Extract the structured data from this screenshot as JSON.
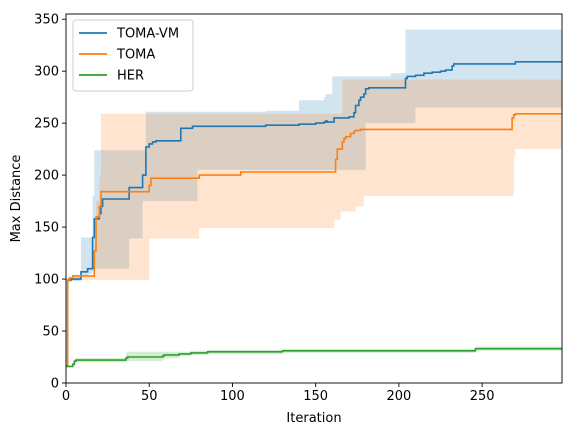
{
  "chart_data": {
    "type": "line",
    "xlabel": "Iteration",
    "ylabel": "Max Distance",
    "xlim": [
      0,
      298
    ],
    "ylim": [
      0,
      355
    ],
    "xticks": [
      0,
      50,
      100,
      150,
      200,
      250
    ],
    "yticks": [
      0,
      50,
      100,
      150,
      200,
      250,
      300,
      350
    ],
    "legend_position": "upper-left",
    "series": [
      {
        "name": "TOMA-VM",
        "color": "#1f77b4",
        "x": [
          0,
          1,
          2,
          3,
          8,
          9,
          12,
          13,
          15,
          16,
          17,
          18,
          20,
          21,
          22,
          23,
          24,
          37,
          38,
          45,
          46,
          47,
          48,
          50,
          52,
          54,
          68,
          69,
          75,
          76,
          78,
          79,
          80,
          81,
          120,
          130,
          140,
          150,
          155,
          156,
          157,
          160,
          161,
          165,
          170,
          173,
          174,
          176,
          177,
          178,
          179,
          180,
          181,
          182,
          185,
          195,
          202,
          204,
          205,
          210,
          215,
          220,
          222,
          225,
          228,
          230,
          232,
          233,
          235,
          240,
          250,
          260,
          270,
          280,
          298
        ],
        "y": [
          17,
          99,
          99,
          100,
          100,
          107,
          107,
          110,
          110,
          140,
          158,
          158,
          163,
          170,
          177,
          177,
          177,
          177,
          188,
          188,
          200,
          200,
          227,
          230,
          232,
          233,
          233,
          245,
          245,
          247,
          247,
          247,
          247,
          247,
          248,
          248,
          249,
          250,
          251,
          252,
          251,
          251,
          255,
          255,
          256,
          260,
          267,
          272,
          275,
          275,
          278,
          283,
          283,
          284,
          284,
          284,
          284,
          293,
          295,
          296,
          298,
          299,
          299,
          300,
          301,
          301,
          305,
          307,
          307,
          307,
          307,
          307,
          309,
          309,
          309
        ],
        "lower": [
          17,
          97,
          97,
          98,
          98,
          103,
          103,
          105,
          105,
          108,
          110,
          110,
          110,
          110,
          110,
          110,
          110,
          110,
          139,
          139,
          175,
          175,
          175,
          175,
          175,
          175,
          175,
          175,
          175,
          175,
          175,
          205,
          205,
          205,
          205,
          205,
          205,
          205,
          205,
          205,
          205,
          205,
          205,
          205,
          205,
          205,
          205,
          205,
          205,
          205,
          205,
          250,
          250,
          250,
          250,
          250,
          250,
          250,
          250,
          265,
          265,
          265,
          265,
          265,
          265,
          265,
          265,
          265,
          265,
          265,
          265,
          265,
          265,
          265,
          265
        ],
        "upper": [
          17,
          101,
          101,
          102,
          102,
          140,
          140,
          140,
          140,
          180,
          224,
          224,
          224,
          224,
          224,
          224,
          224,
          224,
          224,
          224,
          224,
          224,
          261,
          261,
          261,
          261,
          261,
          261,
          261,
          261,
          261,
          261,
          261,
          261,
          262,
          262,
          272,
          272,
          275,
          278,
          278,
          295,
          295,
          295,
          295,
          295,
          295,
          295,
          295,
          295,
          295,
          295,
          295,
          295,
          295,
          298,
          298,
          340,
          340,
          340,
          340,
          340,
          340,
          340,
          340,
          340,
          340,
          340,
          340,
          340,
          340,
          340,
          340,
          340,
          340
        ]
      },
      {
        "name": "TOMA",
        "color": "#ff7f0e",
        "x": [
          0,
          1,
          2,
          4,
          10,
          11,
          14,
          15,
          17,
          18,
          20,
          21,
          22,
          30,
          48,
          49,
          50,
          51,
          72,
          73,
          80,
          104,
          105,
          130,
          161,
          162,
          163,
          164,
          165,
          166,
          167,
          168,
          169,
          170,
          171,
          172,
          173,
          174,
          175,
          176,
          177,
          178,
          179,
          180,
          220,
          240,
          267,
          268,
          269,
          270,
          271,
          298
        ],
        "y": [
          17,
          99,
          101,
          103,
          103,
          103,
          103,
          103,
          127,
          160,
          170,
          184,
          184,
          184,
          184,
          184,
          190,
          197,
          197,
          197,
          200,
          200,
          203,
          203,
          203,
          215,
          225,
          225,
          225,
          232,
          235,
          237,
          237,
          237,
          240,
          240,
          242,
          243,
          243,
          243,
          244,
          244,
          244,
          244,
          244,
          244,
          244,
          255,
          258,
          259,
          259,
          259
        ],
        "lower": [
          17,
          98,
          98,
          99,
          99,
          99,
          99,
          99,
          99,
          99,
          99,
          99,
          99,
          99,
          99,
          99,
          139,
          139,
          139,
          139,
          149,
          149,
          149,
          149,
          157,
          157,
          157,
          157,
          165,
          165,
          165,
          165,
          165,
          165,
          165,
          165,
          165,
          170,
          170,
          170,
          170,
          170,
          180,
          180,
          180,
          180,
          180,
          180,
          218,
          225,
          225,
          225
        ],
        "upper": [
          17,
          100,
          102,
          104,
          104,
          104,
          104,
          104,
          135,
          175,
          200,
          259,
          259,
          259,
          259,
          259,
          259,
          259,
          259,
          259,
          259,
          259,
          259,
          259,
          259,
          259,
          259,
          259,
          259,
          292,
          292,
          292,
          292,
          292,
          292,
          292,
          292,
          292,
          292,
          292,
          292,
          292,
          292,
          292,
          292,
          292,
          292,
          292,
          292,
          292,
          292,
          292
        ]
      },
      {
        "name": "HER",
        "color": "#2ca02c",
        "x": [
          0,
          3,
          4,
          5,
          6,
          35,
          36,
          37,
          57,
          58,
          59,
          68,
          69,
          75,
          76,
          85,
          86,
          130,
          131,
          245,
          246,
          298
        ],
        "y": [
          16,
          16,
          18,
          21,
          22,
          22,
          24,
          25,
          25,
          26,
          27,
          28,
          28,
          29,
          29,
          30,
          30,
          31,
          31,
          31,
          33,
          33
        ],
        "lower": [
          16,
          16,
          17,
          19,
          20,
          20,
          21,
          21,
          21,
          22,
          24,
          26,
          26,
          27,
          27,
          28,
          28,
          29,
          29,
          29,
          31,
          31
        ],
        "upper": [
          16,
          16,
          19,
          23,
          24,
          24,
          29,
          30,
          30,
          30,
          30,
          30,
          30,
          31,
          31,
          32,
          32,
          33,
          33,
          33,
          35,
          35
        ]
      }
    ]
  }
}
